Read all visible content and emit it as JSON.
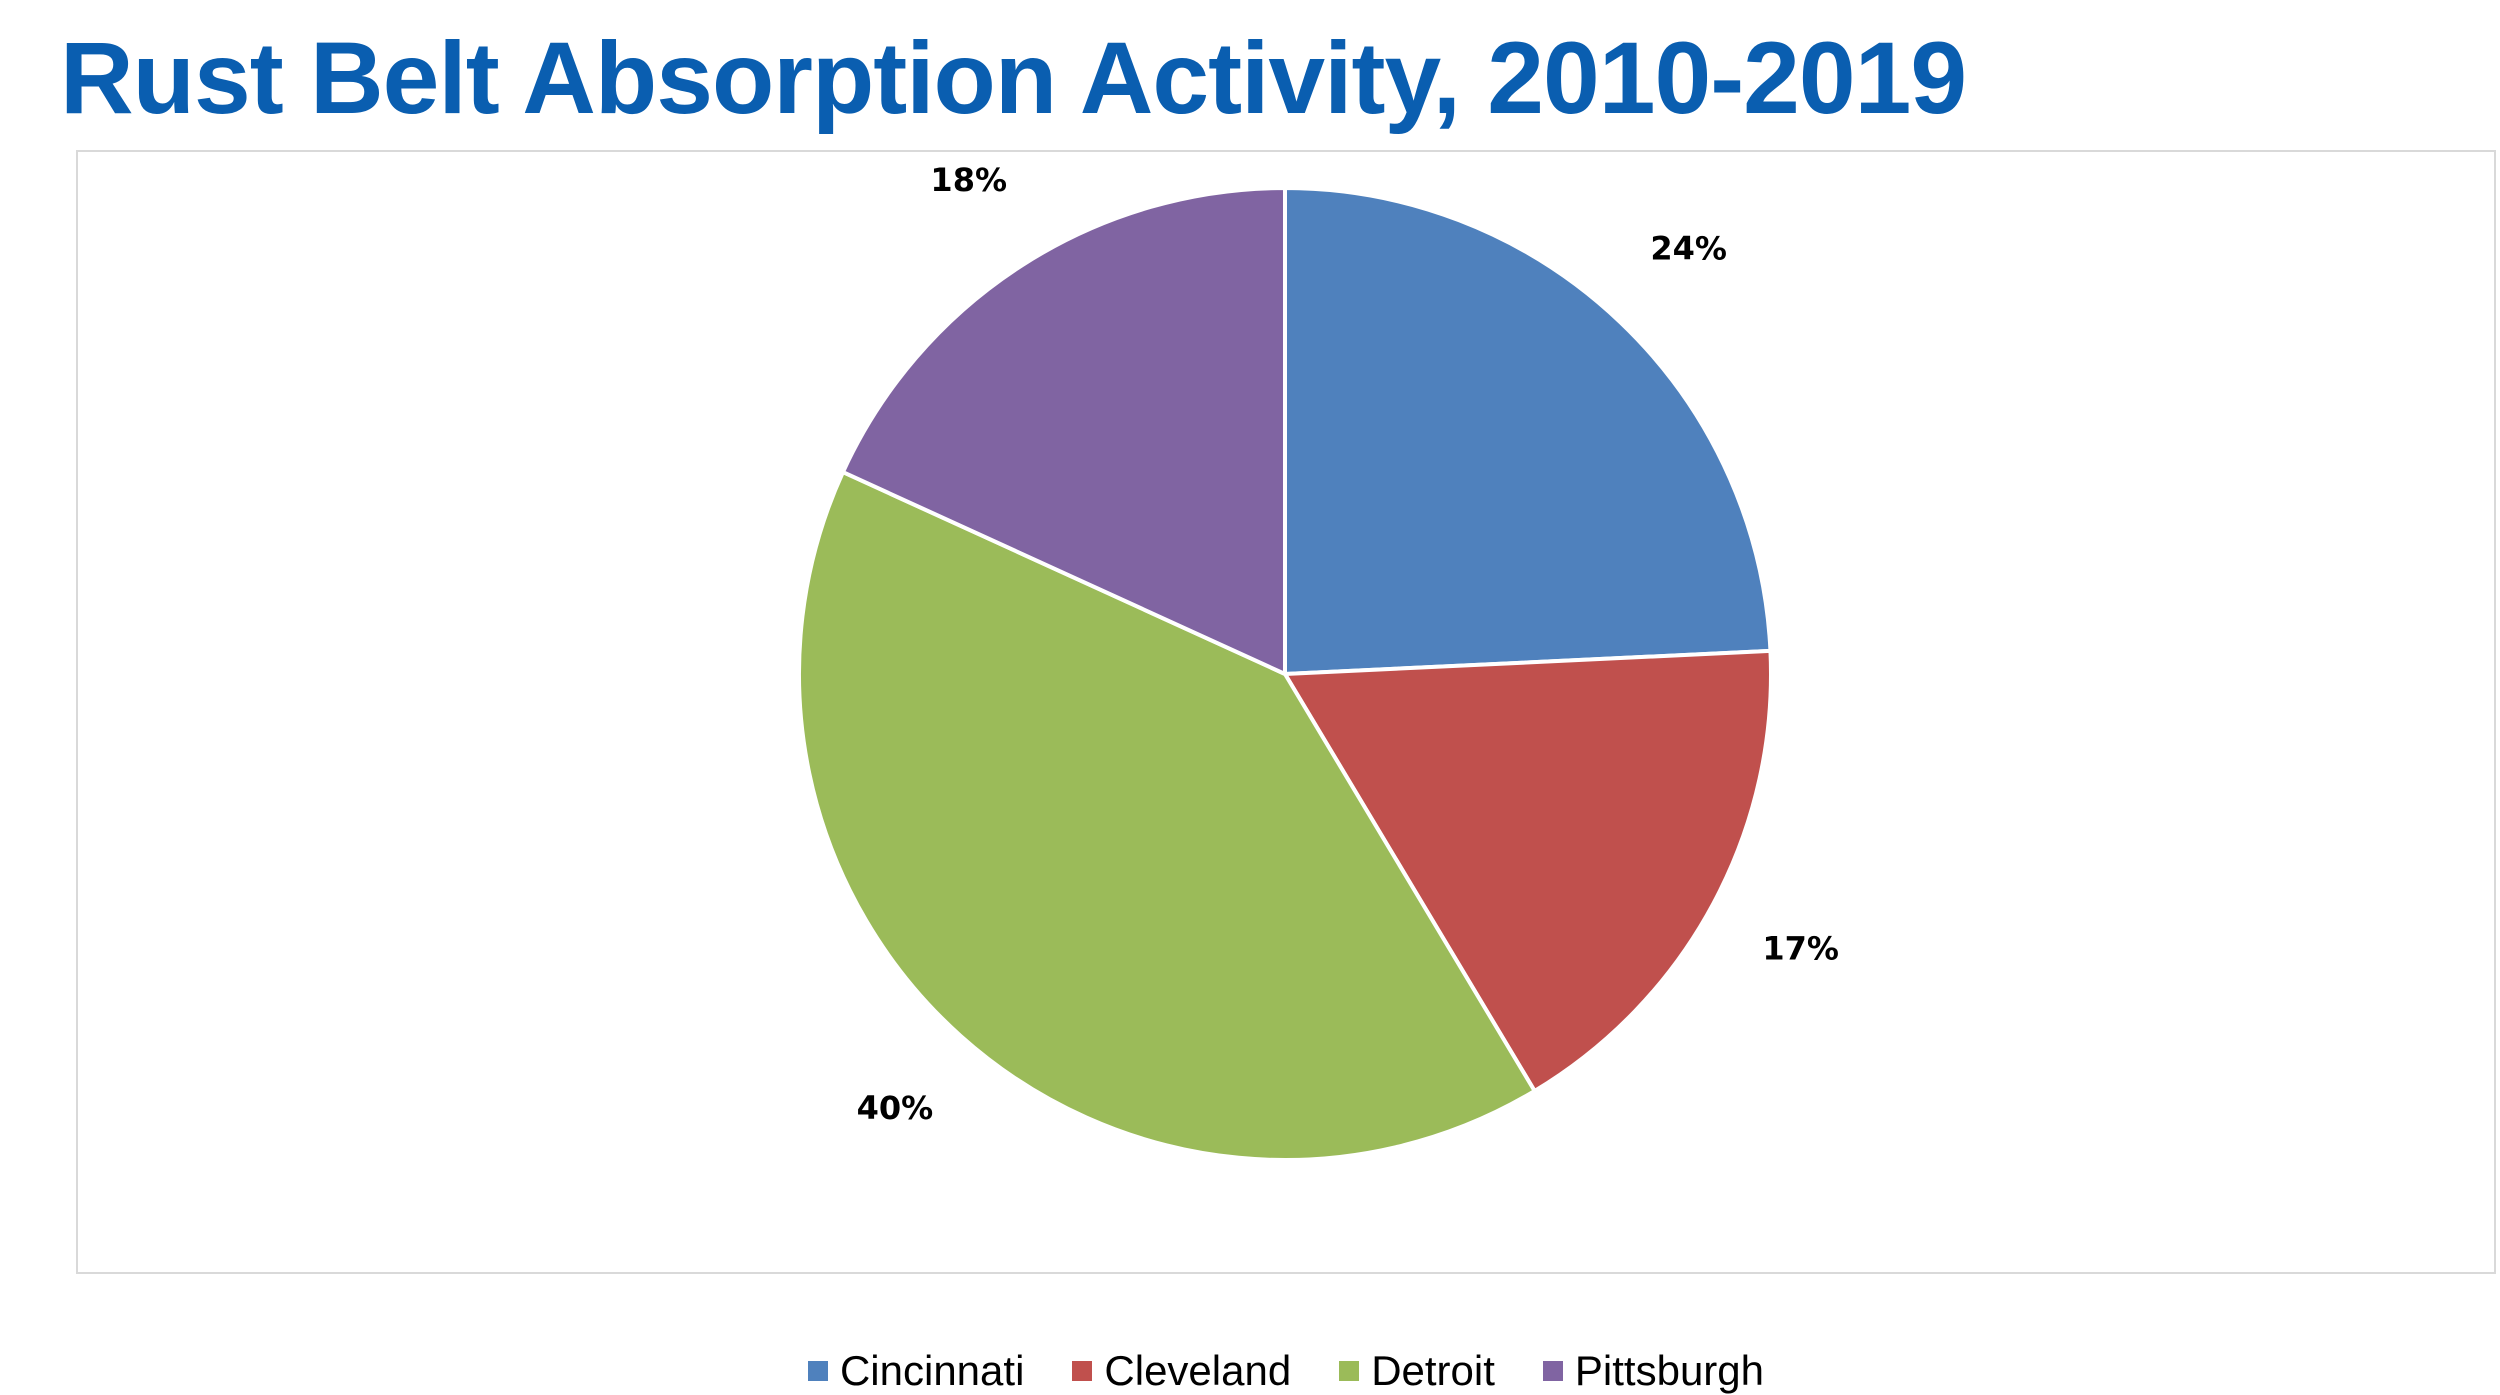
{
  "title": "Rust Belt Absorption Activity, 2010-2019",
  "colors": {
    "title": "#0A5EB0",
    "slice_border": "#ffffff"
  },
  "chart_data": {
    "type": "pie",
    "title": "Rust Belt Absorption Activity, 2010-2019",
    "legend_position": "bottom",
    "start_angle_deg": 0,
    "direction": "clockwise",
    "slices": [
      {
        "name": "Cincinnati",
        "value": 24,
        "label": "24%",
        "color": "#4F81BD"
      },
      {
        "name": "Cleveland",
        "value": 17,
        "label": "17%",
        "color": "#C0504D"
      },
      {
        "name": "Detroit",
        "value": 40,
        "label": "40%",
        "color": "#9BBB59"
      },
      {
        "name": "Pittsburgh",
        "value": 18,
        "label": "18%",
        "color": "#8064A2"
      }
    ]
  }
}
